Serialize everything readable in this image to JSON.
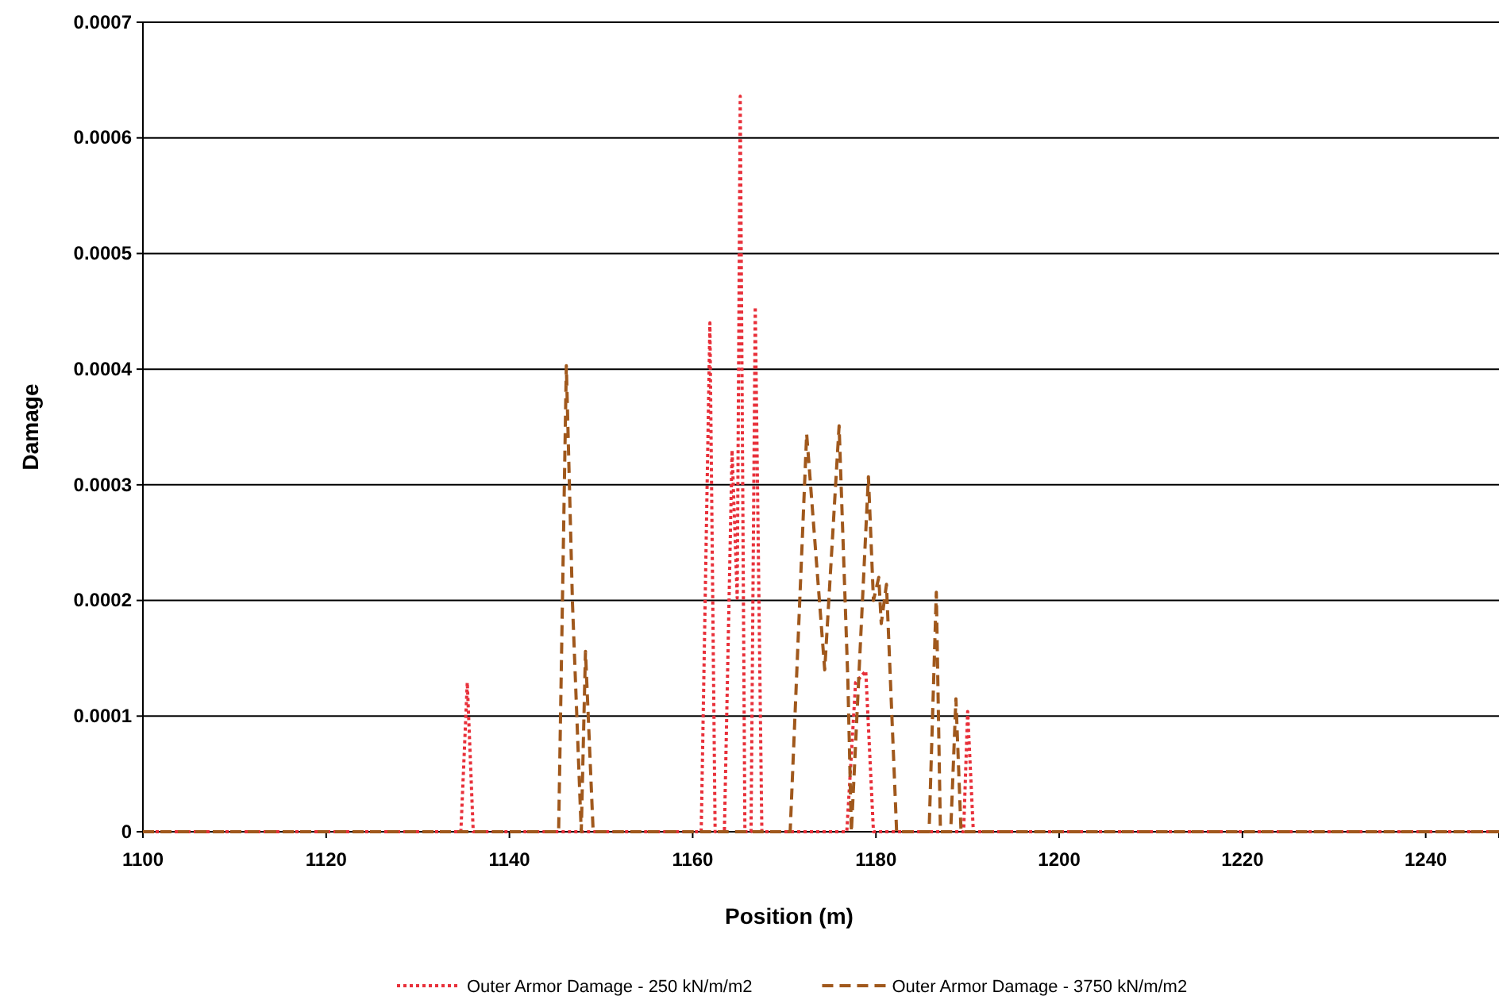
{
  "chart_data": {
    "type": "line",
    "xlabel": "Position (m)",
    "ylabel": "Damage",
    "xlim": [
      1100,
      1248
    ],
    "xticks": [
      1100,
      1120,
      1140,
      1160,
      1180,
      1200,
      1220,
      1240
    ],
    "ylim": [
      0,
      0.0007
    ],
    "yticks": [
      0,
      0.0001,
      0.0002,
      0.0003,
      0.0004,
      0.0005,
      0.0006,
      0.0007
    ],
    "grid": "y",
    "legend": "bottom",
    "marker": "none",
    "series": [
      {
        "name": "Outer Armor Damage  - 250 kN/m/m2",
        "color": "#e8303a",
        "line_style": "dotted",
        "x": [
          1100,
          1134.7,
          1135.4,
          1136.05,
          1160.93,
          1161.88,
          1162.45,
          1163.46,
          1164.3,
          1164.86,
          1165.19,
          1165.7,
          1166.37,
          1166.83,
          1167.55,
          1176.82,
          1177.78,
          1178.89,
          1179.73,
          1189.57,
          1190.01,
          1190.63,
          1248
        ],
        "values": [
          0,
          0,
          0.000129,
          0,
          0,
          0.00044,
          0,
          0,
          0.00033,
          0.000202,
          0.000636,
          0,
          0,
          0.000454,
          0,
          0,
          0.000129,
          0.000139,
          0,
          0,
          0.000104,
          0,
          0
        ]
      },
      {
        "name": "Outer Armor Damage  - 3750 kN/m/m2",
        "color": "#a0581c",
        "line_style": "dashed",
        "x": [
          1100,
          1145.37,
          1146.21,
          1146.88,
          1147.84,
          1148.3,
          1149.14,
          1170.64,
          1172.44,
          1174.41,
          1175.98,
          1176.94,
          1177.32,
          1179.18,
          1179.73,
          1180.31,
          1180.58,
          1181.15,
          1182.26,
          1185.8,
          1186.59,
          1187.04,
          1188.16,
          1188.73,
          1189.29,
          1248
        ],
        "values": [
          0,
          0,
          0.000403,
          0.000198,
          0,
          0.000156,
          0,
          0,
          0.000344,
          0.00014,
          0.000351,
          0.00013,
          0,
          0.000307,
          0.0002,
          0.00022,
          0.00018,
          0.000214,
          0,
          0,
          0.000207,
          0,
          0,
          0.000115,
          0,
          0
        ]
      }
    ]
  }
}
